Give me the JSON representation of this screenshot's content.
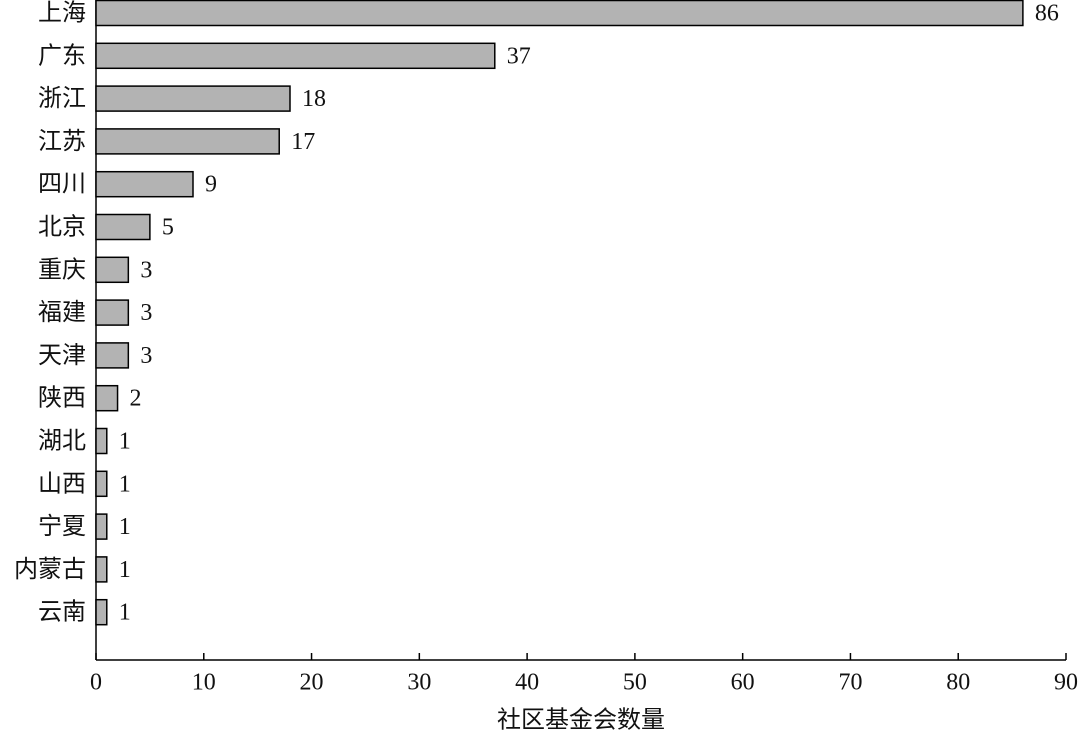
{
  "chart_data": {
    "type": "bar",
    "orientation": "horizontal",
    "categories": [
      "上海",
      "广东",
      "浙江",
      "江苏",
      "四川",
      "北京",
      "重庆",
      "福建",
      "天津",
      "陕西",
      "湖北",
      "山西",
      "宁夏",
      "内蒙古",
      "云南"
    ],
    "values": [
      86,
      37,
      18,
      17,
      9,
      5,
      3,
      3,
      3,
      2,
      1,
      1,
      1,
      1,
      1
    ],
    "color": "#b3b3b3",
    "xlabel": "社区基金会数量",
    "xlim": [
      0,
      90
    ],
    "xticks": [
      0,
      10,
      20,
      30,
      40,
      50,
      60,
      70,
      80,
      90
    ]
  }
}
